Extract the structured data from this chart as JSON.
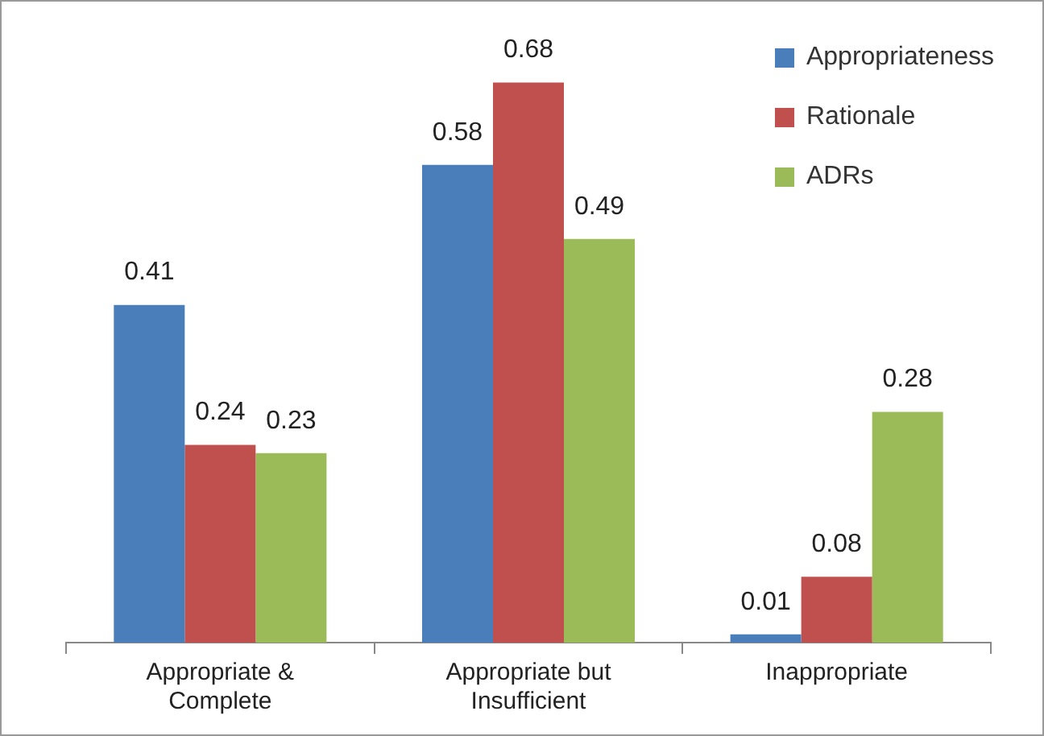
{
  "chart_data": {
    "type": "bar",
    "categories": [
      "Appropriate & Complete",
      "Appropriate but Insufficient",
      "Inappropriate"
    ],
    "series": [
      {
        "name": "Appropriateness",
        "color": "#4a7ebb",
        "values": [
          0.41,
          0.58,
          0.01
        ]
      },
      {
        "name": "Rationale",
        "color": "#c0504d",
        "values": [
          0.24,
          0.68,
          0.08
        ]
      },
      {
        "name": "ADRs",
        "color": "#9bbb59",
        "values": [
          0.23,
          0.49,
          0.28
        ]
      }
    ],
    "data_labels": true,
    "legend": "top right",
    "grid": false,
    "tick_labels": "x"
  }
}
